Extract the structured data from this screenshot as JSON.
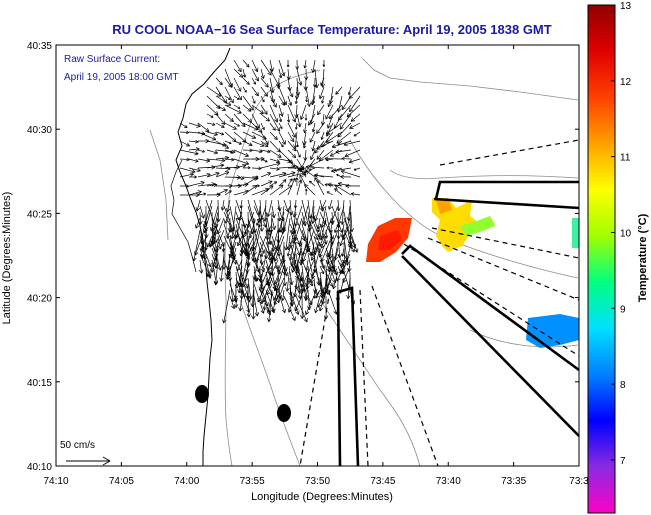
{
  "title": "RU COOL  NOAA−16  Sea Surface Temperature:  April 19, 2005 1838 GMT",
  "legend": {
    "line1": "Raw Surface Current:",
    "line2": "April 19, 2005 18:00 GMT"
  },
  "scale_label": "50 cm/s",
  "axes": {
    "xlabel": "Longitude (Degrees:Minutes)",
    "ylabel": "Latitude (Degrees:Minutes)",
    "x_ticks": [
      "74:10",
      "74:05",
      "74:00",
      "73:55",
      "73:50",
      "73:45",
      "73:40",
      "73:35",
      "73:3"
    ],
    "y_ticks": [
      "40:35",
      "40:30",
      "40:25",
      "40:20",
      "40:15",
      "40:10"
    ]
  },
  "colorbar": {
    "label": "Temperature (°C)",
    "ticks": [
      "13",
      "12",
      "11",
      "10",
      "9",
      "8",
      "7"
    ],
    "colors": [
      "#ff00c8",
      "#8a2be2",
      "#0000ff",
      "#0080ff",
      "#00e0ff",
      "#00ff80",
      "#a0ff00",
      "#ffff00",
      "#ffa000",
      "#ff4000",
      "#e00000",
      "#900000"
    ]
  }
}
